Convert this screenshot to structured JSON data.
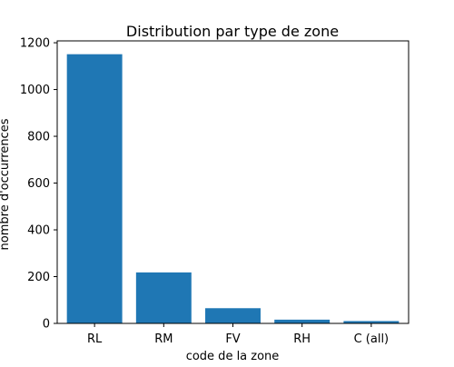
{
  "chart_data": {
    "type": "bar",
    "title": "Distribution par type de zone",
    "xlabel": "code de la zone",
    "ylabel": "nombre d'occurrences",
    "categories": [
      "RL",
      "RM",
      "FV",
      "RH",
      "C (all)"
    ],
    "values": [
      1151,
      218,
      65,
      16,
      10
    ],
    "ylim": [
      0,
      1208
    ],
    "yticks": [
      0,
      200,
      400,
      600,
      800,
      1000,
      1200
    ],
    "grid": false,
    "bar_color": "#1f77b4"
  }
}
